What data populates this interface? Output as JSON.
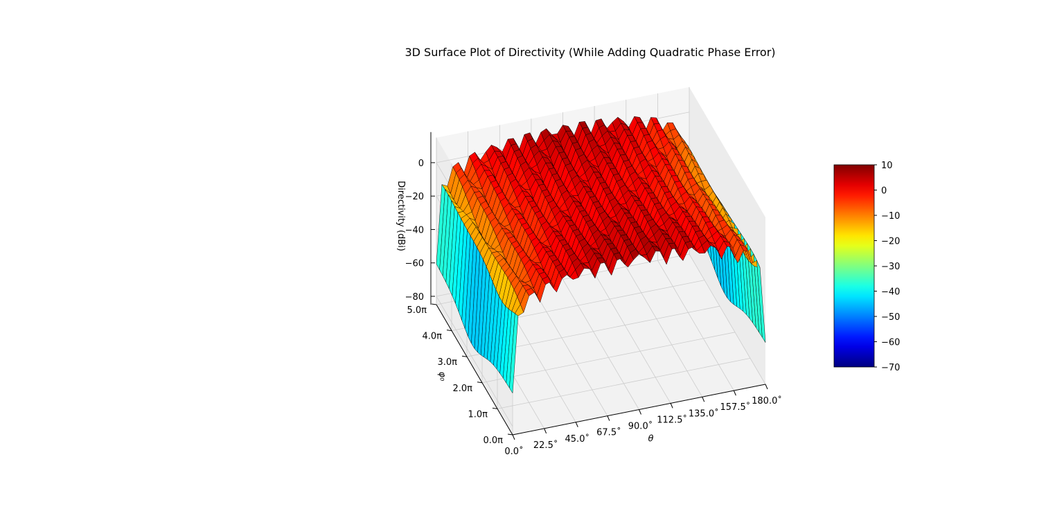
{
  "chart_data": {
    "type": "surface",
    "title": "3D Surface Plot of Directivity (While Adding Quadratic Phase Error)",
    "xlabel": "θ",
    "ylabel": "φ₀",
    "zlabel": "Directivity (dBi)",
    "x_ticks": [
      "0.0˚",
      "22.5˚",
      "45.0˚",
      "67.5˚",
      "90.0˚",
      "112.5˚",
      "135.0˚",
      "157.5˚",
      "180.0˚"
    ],
    "x_tick_values": [
      0,
      22.5,
      45,
      67.5,
      90,
      112.5,
      135,
      157.5,
      180
    ],
    "y_ticks": [
      "0.0π",
      "1.0π",
      "2.0π",
      "3.0π",
      "4.0π",
      "5.0π"
    ],
    "y_tick_values": [
      0,
      1,
      2,
      3,
      4,
      5
    ],
    "z_ticks": [
      "−80",
      "−60",
      "−40",
      "−20",
      "0"
    ],
    "z_tick_values": [
      -80,
      -60,
      -40,
      -20,
      0
    ],
    "xlim": [
      0,
      180
    ],
    "ylim": [
      0,
      5
    ],
    "zlim": [
      -85,
      15
    ],
    "colormap": "jet",
    "colorbar": {
      "range": [
        -70,
        10
      ],
      "ticks": [
        "10",
        "0",
        "−10",
        "−20",
        "−30",
        "−40",
        "−50",
        "−60",
        "−70"
      ],
      "tick_values": [
        10,
        0,
        -10,
        -20,
        -30,
        -40,
        -50,
        -60,
        -70
      ]
    },
    "surface": {
      "description_values": {
        "peak_dBi": 10,
        "min_dBi": -70,
        "theta_range_deg": [
          0,
          180
        ],
        "phi0_range_pi": [
          0,
          5
        ]
      }
    },
    "edge_color": "#000000",
    "grid": true
  }
}
